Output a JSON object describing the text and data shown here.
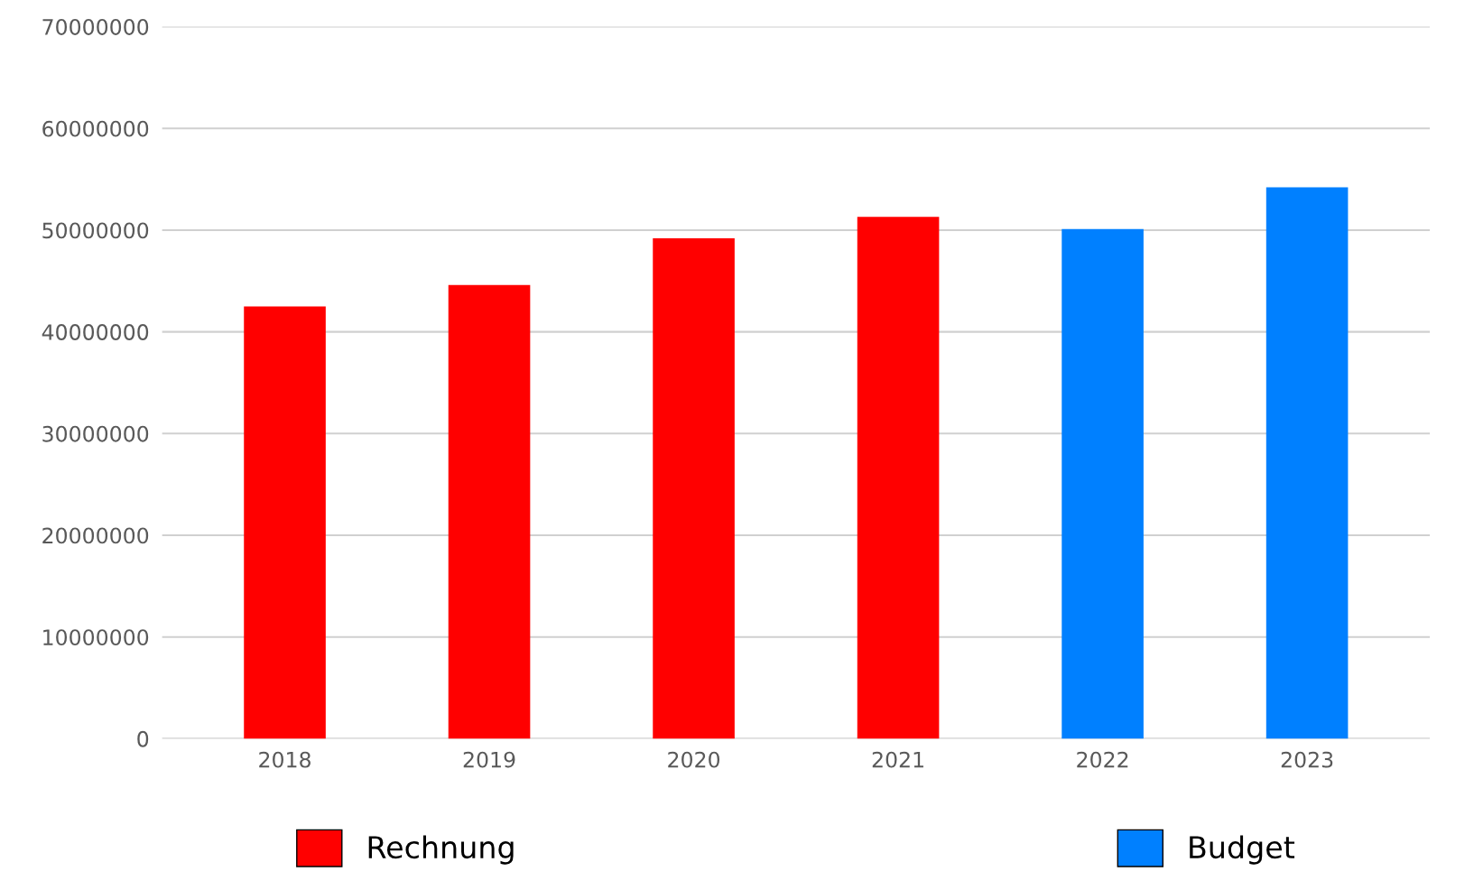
{
  "chart_data": {
    "type": "bar",
    "categories": [
      "2018",
      "2019",
      "2020",
      "2021",
      "2022",
      "2023"
    ],
    "series": [
      {
        "name": "Rechnung",
        "color": "#ff0000",
        "values": [
          42500000,
          44600000,
          49200000,
          51300000,
          null,
          null
        ]
      },
      {
        "name": "Budget",
        "color": "#0080ff",
        "values": [
          null,
          null,
          null,
          null,
          50100000,
          54200000
        ]
      }
    ],
    "ylim": [
      0,
      70000000
    ],
    "yticks": [
      0,
      10000000,
      20000000,
      30000000,
      40000000,
      50000000,
      60000000,
      70000000
    ],
    "grid": "y",
    "legend": "bottom"
  }
}
